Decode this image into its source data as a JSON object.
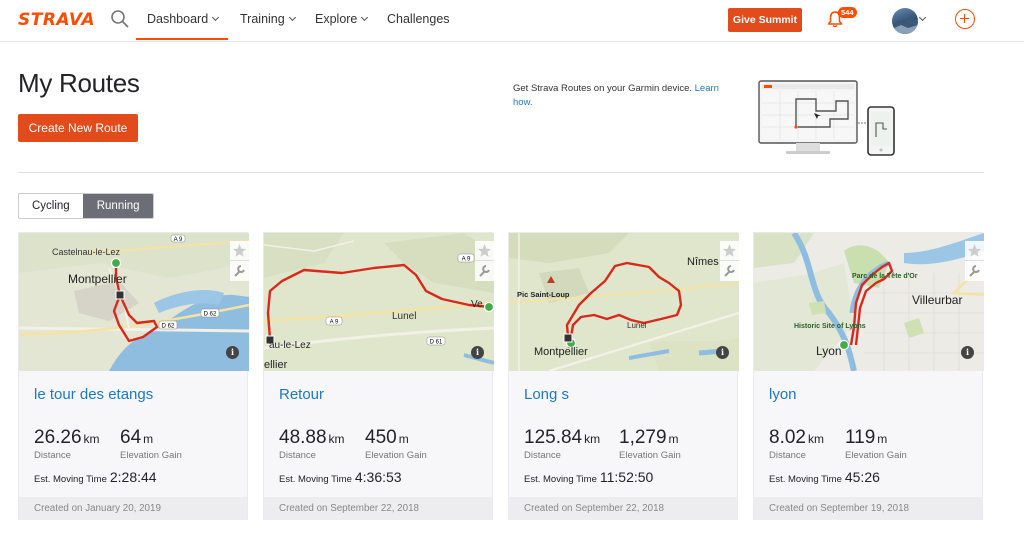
{
  "header": {
    "logo": "STRAVA",
    "nav": [
      {
        "label": "Dashboard",
        "dropdown": true
      },
      {
        "label": "Training",
        "dropdown": true
      },
      {
        "label": "Explore",
        "dropdown": true
      },
      {
        "label": "Challenges",
        "dropdown": false
      }
    ],
    "give_summit_label": "Give Summit",
    "notification_count": "544"
  },
  "page": {
    "title": "My Routes",
    "create_route_label": "Create New Route",
    "promo_text": "Get Strava Routes on your Garmin device.",
    "promo_link": "Learn how."
  },
  "filter": {
    "options": [
      "Cycling",
      "Running"
    ],
    "selected": "Running"
  },
  "routes": [
    {
      "name": "le tour des etangs",
      "distance": "26.26",
      "distance_unit": "km",
      "distance_label": "Distance",
      "elevation": "64",
      "elevation_unit": "m",
      "elevation_label": "Elevation Gain",
      "moving_time_label": "Est. Moving Time",
      "moving_time": "2:28:44",
      "created": "Created on January 20, 2019",
      "map_labels": [
        "Castelnau-le-Lez",
        "Montpellier",
        "D 62",
        "D 62",
        "A 9"
      ]
    },
    {
      "name": "Retour",
      "distance": "48.88",
      "distance_unit": "km",
      "distance_label": "Distance",
      "elevation": "450",
      "elevation_unit": "m",
      "elevation_label": "Elevation Gain",
      "moving_time_label": "Est. Moving Time",
      "moving_time": "4:36:53",
      "created": "Created on September 22, 2018",
      "map_labels": [
        "Lunel",
        "au-le-Lez",
        "ellier",
        "A 9",
        "D 61",
        "A 9",
        "Ve"
      ]
    },
    {
      "name": "Long s",
      "distance": "125.84",
      "distance_unit": "km",
      "distance_label": "Distance",
      "elevation": "1,279",
      "elevation_unit": "m",
      "elevation_label": "Elevation Gain",
      "moving_time_label": "Est. Moving Time",
      "moving_time": "11:52:50",
      "created": "Created on September 22, 2018",
      "map_labels": [
        "Nîmes",
        "Pic Saint-Loup",
        "Montpellier",
        "Lunel"
      ]
    },
    {
      "name": "lyon",
      "distance": "8.02",
      "distance_unit": "km",
      "distance_label": "Distance",
      "elevation": "119",
      "elevation_unit": "m",
      "elevation_label": "Elevation Gain",
      "moving_time_label": "Est. Moving Time",
      "moving_time": "45:26",
      "created": "Created on September 19, 2018",
      "map_labels": [
        "Parc de la Tête d'Or",
        "Villeurbar",
        "Historic Site of Lyons",
        "Lyon"
      ]
    }
  ],
  "colors": {
    "brand": "#fc4c02",
    "button": "#e24b1b",
    "link": "#1b7ac4",
    "route_line": "#d9291c",
    "map_land": "#dfe4cf",
    "map_water": "#9cc3e4"
  }
}
